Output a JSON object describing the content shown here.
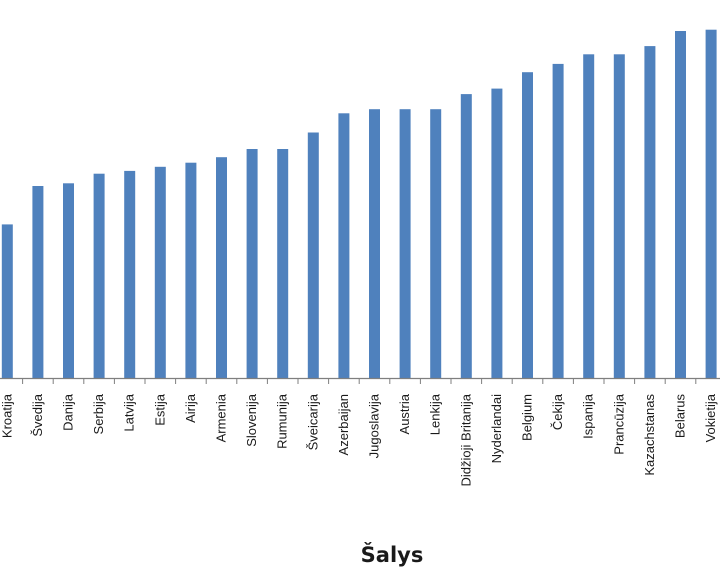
{
  "chart_data": {
    "type": "bar",
    "title": "",
    "xlabel": "Šalys",
    "ylabel": "",
    "grid": false,
    "legend": "none",
    "bar_color": "#4F81BD",
    "axis_color": "#7F7F7F",
    "ylim": [
      0,
      28
    ],
    "categories": [
      "Kroatija",
      "Švedija",
      "Danija",
      "Serbija",
      "Latvija",
      "Estija",
      "Airija",
      "Armenia",
      "Slovenija",
      "Rumunija",
      "Šveicarija",
      "Azerbaijan",
      "Jugoslavija",
      "Austria",
      "Lenkija",
      "Didžioji Britanija",
      "Nyderlandai",
      "Belgium",
      "Čekija",
      "Ispanija",
      "Prancūzija",
      "Kazachstanas",
      "Belarus",
      "Vokietija"
    ],
    "values": [
      11.2,
      14.0,
      14.2,
      14.9,
      15.1,
      15.4,
      15.7,
      16.1,
      16.7,
      16.7,
      17.9,
      19.3,
      19.6,
      19.6,
      19.6,
      20.7,
      21.1,
      22.3,
      22.9,
      23.6,
      23.6,
      24.2,
      25.3,
      25.4
    ]
  }
}
